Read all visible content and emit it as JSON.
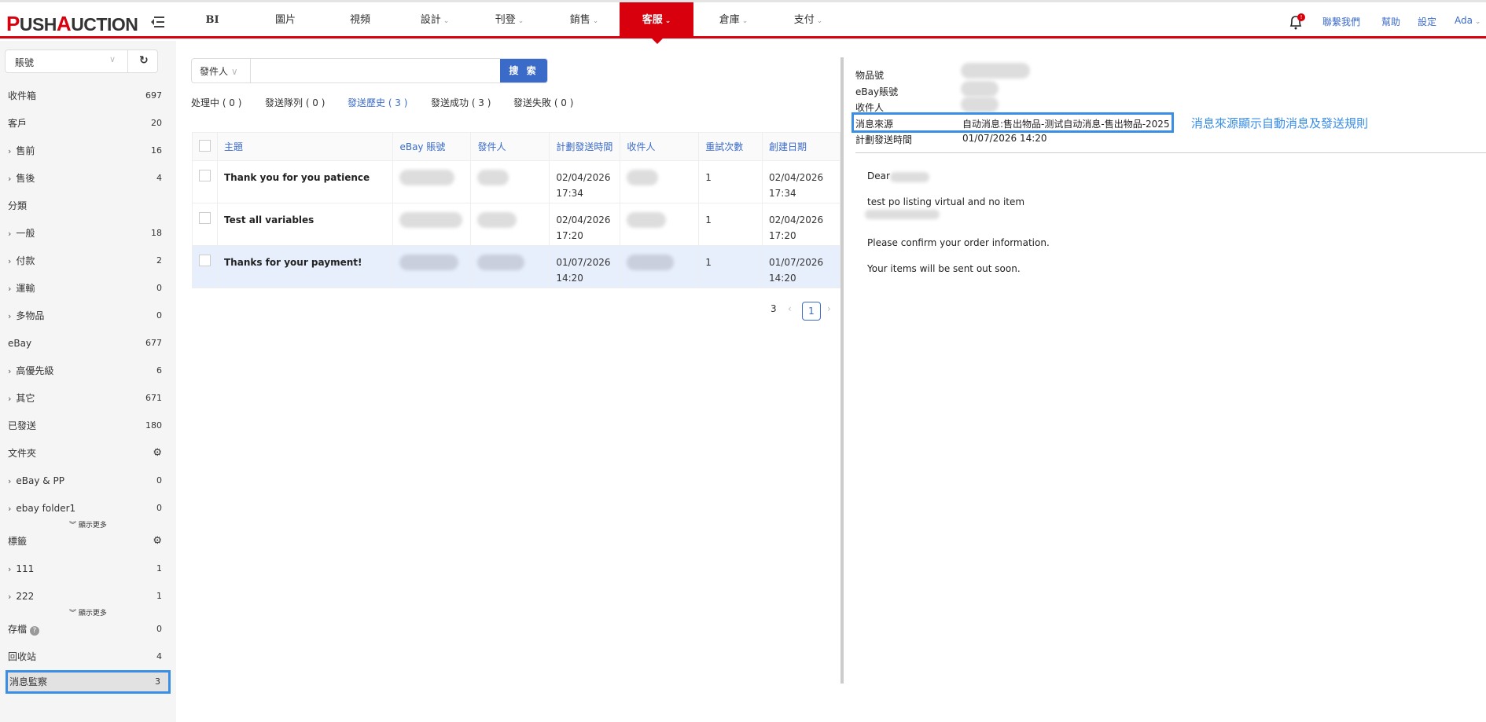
{
  "header": {
    "logo": "PUSHAUCTION",
    "nav": [
      {
        "label": "BI"
      },
      {
        "label": "圖片"
      },
      {
        "label": "視頻"
      },
      {
        "label": "設計",
        "dropdown": true
      },
      {
        "label": "刊登",
        "dropdown": true
      },
      {
        "label": "銷售",
        "dropdown": true
      },
      {
        "label": "客服",
        "dropdown": true,
        "active": true
      },
      {
        "label": "倉庫",
        "dropdown": true
      },
      {
        "label": "支付",
        "dropdown": true
      }
    ],
    "notifications_badge": "!",
    "links": {
      "contact": "聯繫我們",
      "help": "幫助",
      "settings": "設定",
      "user": "Ada"
    },
    "accent": "#d9000d"
  },
  "sidebar": {
    "account_select": "賬號",
    "items": [
      {
        "label": "收件箱",
        "count": "697"
      },
      {
        "label": "客戶",
        "count": "20"
      },
      {
        "label": "售前",
        "count": "16",
        "sub": true
      },
      {
        "label": "售後",
        "count": "4",
        "sub": true
      },
      {
        "label": "分類",
        "count": ""
      },
      {
        "label": "一般",
        "count": "18",
        "sub": true
      },
      {
        "label": "付款",
        "count": "2",
        "sub": true
      },
      {
        "label": "運輸",
        "count": "0",
        "sub": true
      },
      {
        "label": "多物品",
        "count": "0",
        "sub": true
      },
      {
        "label": "eBay",
        "count": "677"
      },
      {
        "label": "高優先級",
        "count": "6",
        "sub": true
      },
      {
        "label": "其它",
        "count": "671",
        "sub": true
      },
      {
        "label": "已發送",
        "count": "180"
      },
      {
        "label": "文件夾",
        "count": "",
        "gear": true
      },
      {
        "label": "eBay & PP",
        "count": "0",
        "sub": true
      },
      {
        "label": "ebay folder1",
        "count": "0",
        "sub": true
      }
    ],
    "show_more": "顯示更多",
    "tags_label": "標籤",
    "tags": [
      {
        "label": "111",
        "count": "1"
      },
      {
        "label": "222",
        "count": "1"
      }
    ],
    "archive": {
      "label": "存檔",
      "count": "0"
    },
    "trash": {
      "label": "回收站",
      "count": "4"
    },
    "monitor": {
      "label": "消息監察",
      "count": "3",
      "selected": true
    }
  },
  "main": {
    "search": {
      "field": "發件人",
      "value": "",
      "button": "搜 索"
    },
    "tabs": [
      {
        "label": "处理中 ( 0 )"
      },
      {
        "label": "發送隊列 ( 0 )"
      },
      {
        "label": "發送歷史 ( 3 )",
        "active": true
      },
      {
        "label": "發送成功 ( 3 )"
      },
      {
        "label": "發送失敗 ( 0 )"
      }
    ],
    "columns": [
      "主題",
      "eBay 賬號",
      "發件人",
      "計劃發送時間",
      "收件人",
      "重試次數",
      "創建日期"
    ],
    "rows": [
      {
        "subject": "Thank you for you patience",
        "scheduled_date": "02/04/2026",
        "scheduled_time": "17:34",
        "retries": "1",
        "created_date": "02/04/2026",
        "created_time": "17:34"
      },
      {
        "subject": "Test all variables",
        "scheduled_date": "02/04/2026",
        "scheduled_time": "17:20",
        "retries": "1",
        "created_date": "02/04/2026",
        "created_time": "17:20"
      },
      {
        "subject": "Thanks for your payment!",
        "scheduled_date": "01/07/2026",
        "scheduled_time": "14:20",
        "retries": "1",
        "created_date": "01/07/2026",
        "created_time": "14:20",
        "selected": true
      }
    ],
    "pagination": {
      "total": "3",
      "current": "1"
    }
  },
  "detail": {
    "labels": {
      "item": "物品號",
      "account": "eBay賬號",
      "recipient": "收件人",
      "source": "消息來源",
      "scheduled": "計劃發送時間"
    },
    "source_value": "自动消息:售出物品-测试自动消息-售出物品-2025",
    "scheduled_value": "01/07/2026 14:20",
    "annotation": "消息來源顯示自動消息及發送規則",
    "body": {
      "greeting": "Dear",
      "line1": "test po listing virtual and no item",
      "line2": "Please confirm your order information.",
      "line3": "Your items will be sent out soon."
    }
  }
}
